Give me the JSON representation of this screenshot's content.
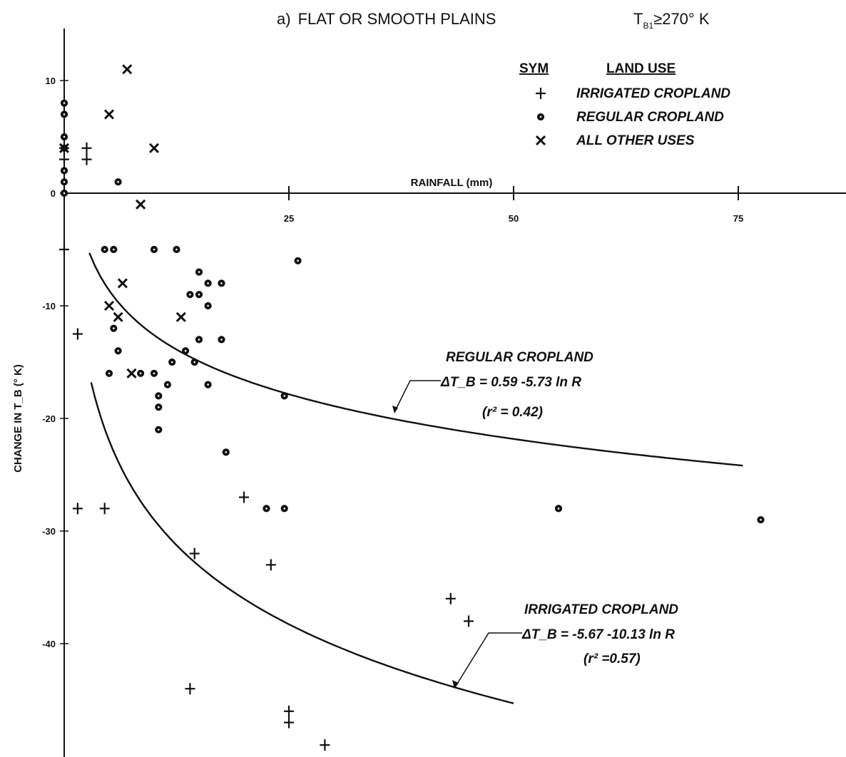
{
  "title": {
    "panel": "a)",
    "text": "FLAT OR SMOOTH PLAINS",
    "condition_prefix": "T",
    "condition_sub": "B1",
    "condition_suffix": "≥270° K"
  },
  "legend": {
    "sym_header": "SYM",
    "use_header": "LAND USE",
    "items": [
      {
        "symbol": "+",
        "label": "IRRIGATED CROPLAND"
      },
      {
        "symbol": "○",
        "label": "REGULAR CROPLAND"
      },
      {
        "symbol": "x",
        "label": "ALL OTHER USES"
      }
    ]
  },
  "annotations": {
    "regular": {
      "name": "REGULAR CROPLAND",
      "equation": "ΔT_B = 0.59 -5.73 ln R",
      "r2": "(r² = 0.42)"
    },
    "irrigated": {
      "name": "IRRIGATED CROPLAND",
      "equation": "ΔT_B = -5.67 -10.13 ln R",
      "r2": "(r² =0.57)"
    }
  },
  "chart_data": {
    "type": "scatter",
    "xlabel": "RAINFALL (mm)",
    "ylabel": "CHANGE IN T_B (° K)",
    "xlim": [
      0,
      87
    ],
    "ylim": [
      -49,
      15
    ],
    "x_ticks": [
      25,
      50,
      75
    ],
    "y_ticks": [
      10,
      0,
      -10,
      -20,
      -30,
      -40
    ],
    "x_tick_labels": [
      "25",
      "50",
      "75"
    ],
    "y_tick_labels": [
      "10",
      "0",
      "-10",
      "-20",
      "-30",
      "-40"
    ],
    "grid": false,
    "legend_position": "top-right",
    "series": [
      {
        "name": "IRRIGATED CROPLAND",
        "marker": "+",
        "points": [
          [
            0,
            4
          ],
          [
            0,
            3
          ],
          [
            0,
            -5
          ],
          [
            2.5,
            4
          ],
          [
            2.5,
            3
          ],
          [
            1.5,
            -12.5
          ],
          [
            1.5,
            -28
          ],
          [
            4.5,
            -28
          ],
          [
            14.5,
            -32
          ],
          [
            20,
            -27
          ],
          [
            23,
            -33
          ],
          [
            14,
            -44
          ],
          [
            25,
            -46
          ],
          [
            25,
            -47
          ],
          [
            29,
            -49
          ],
          [
            43,
            -36
          ],
          [
            45,
            -38
          ]
        ]
      },
      {
        "name": "REGULAR CROPLAND",
        "marker": "o",
        "points": [
          [
            0,
            8
          ],
          [
            0,
            7
          ],
          [
            0,
            5
          ],
          [
            0,
            4
          ],
          [
            0,
            2
          ],
          [
            0,
            1
          ],
          [
            0,
            0
          ],
          [
            6,
            1
          ],
          [
            4.5,
            -5
          ],
          [
            5.5,
            -5
          ],
          [
            10,
            -5
          ],
          [
            12.5,
            -5
          ],
          [
            15,
            -7
          ],
          [
            14,
            -9
          ],
          [
            15,
            -9
          ],
          [
            16,
            -8
          ],
          [
            16,
            -10
          ],
          [
            17.5,
            -8
          ],
          [
            5.5,
            -12
          ],
          [
            6,
            -14
          ],
          [
            5,
            -16
          ],
          [
            8.5,
            -16
          ],
          [
            10,
            -16
          ],
          [
            10.5,
            -18
          ],
          [
            10.5,
            -19
          ],
          [
            10.5,
            -21
          ],
          [
            11.5,
            -17
          ],
          [
            12,
            -15
          ],
          [
            13.5,
            -14
          ],
          [
            14.5,
            -15
          ],
          [
            15,
            -13
          ],
          [
            16,
            -17
          ],
          [
            17.5,
            -13
          ],
          [
            18,
            -23
          ],
          [
            22.5,
            -28
          ],
          [
            24.5,
            -28
          ],
          [
            24.5,
            -18
          ],
          [
            26,
            -6
          ],
          [
            55,
            -28
          ],
          [
            77.5,
            -29
          ]
        ]
      },
      {
        "name": "ALL OTHER USES",
        "marker": "x",
        "points": [
          [
            7,
            11
          ],
          [
            5,
            7
          ],
          [
            10,
            4
          ],
          [
            0,
            4
          ],
          [
            8.5,
            -1
          ],
          [
            6.5,
            -8
          ],
          [
            5,
            -10
          ],
          [
            6,
            -11
          ],
          [
            13,
            -11
          ],
          [
            7.5,
            -16
          ]
        ]
      }
    ],
    "fitted_curves": [
      {
        "name": "REGULAR CROPLAND",
        "equation": "0.59 - 5.73 ln R",
        "a": 0.59,
        "b": -5.73,
        "x_range": [
          2.8,
          75.5
        ]
      },
      {
        "name": "IRRIGATED CROPLAND",
        "equation": "-5.67 - 10.13 ln R",
        "a": -5.67,
        "b": -10.13,
        "x_range": [
          3,
          50
        ]
      }
    ]
  }
}
